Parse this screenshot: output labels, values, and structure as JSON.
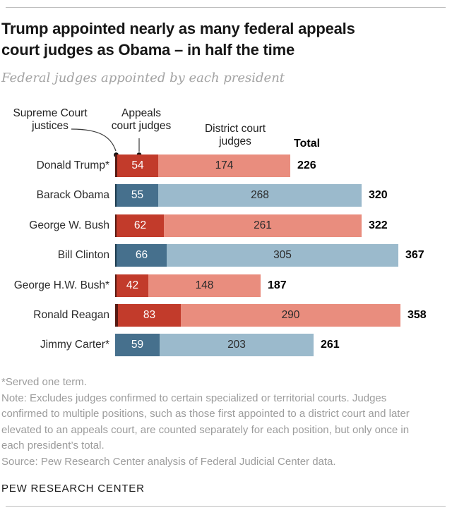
{
  "header": {
    "title_line1": "Trump appointed nearly as many federal appeals",
    "title_line2": "court judges as Obama – in half the time",
    "subtitle": "Federal judges appointed by each president"
  },
  "legend": {
    "supreme_line1": "Supreme Court",
    "supreme_line2": "justices",
    "appeals_line1": "Appeals",
    "appeals_line2": "court judges",
    "district_line1": "District court",
    "district_line2": "judges",
    "total_label": "Total"
  },
  "chart_data": {
    "type": "bar",
    "orientation": "horizontal",
    "stacked": true,
    "unit": "judges",
    "categories": [
      "Donald Trump*",
      "Barack Obama",
      "George W. Bush",
      "Bill Clinton",
      "George H.W. Bush*",
      "Ronald Reagan",
      "Jimmy Carter*"
    ],
    "party": [
      "R",
      "D",
      "R",
      "D",
      "R",
      "R",
      "D"
    ],
    "series": [
      {
        "name": "Supreme Court justices",
        "labeled": false,
        "values": [
          3,
          2,
          2,
          2,
          2,
          4,
          0
        ]
      },
      {
        "name": "Appeals court judges",
        "labeled": true,
        "values": [
          54,
          55,
          62,
          66,
          42,
          83,
          59
        ]
      },
      {
        "name": "District court judges",
        "labeled": true,
        "values": [
          174,
          268,
          261,
          305,
          148,
          290,
          203
        ]
      }
    ],
    "totals": [
      226,
      320,
      322,
      367,
      187,
      358,
      261
    ],
    "xlim": [
      0,
      380
    ],
    "grid": false,
    "legend_position": "top"
  },
  "colors": {
    "republican_scotus": "#571a12",
    "republican_appeals": "#c23b2b",
    "republican_district": "#e98d7e",
    "democrat_scotus": "#1d3c4e",
    "democrat_appeals": "#46708d",
    "democrat_district": "#9bbacc",
    "value_on_dark": "#ffffff",
    "value_on_light": "#2b2b2b",
    "total_text": "#000000"
  },
  "footer": {
    "footnote": "*Served one term.",
    "note": "Note: Excludes judges confirmed to certain specialized or territorial courts. Judges confirmed to multiple positions, such as those first appointed to a district court and later elevated to an appeals court, are counted separately for each position, but only once in each president’s total.",
    "source": "Source: Pew Research Center analysis of Federal Judicial Center data.",
    "wordmark": "PEW RESEARCH CENTER"
  }
}
